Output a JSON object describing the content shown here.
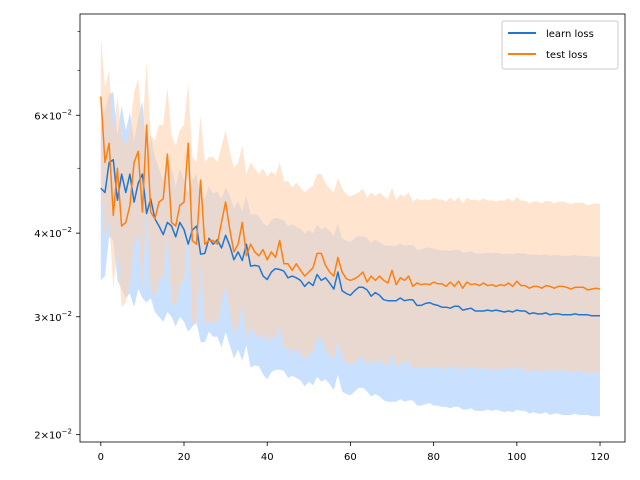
{
  "chart_data": {
    "type": "line",
    "yscale": "log",
    "xlim": [
      -5,
      126
    ],
    "ylim": [
      0.0195,
      0.085
    ],
    "x_ticks": [
      0,
      20,
      40,
      60,
      80,
      100,
      120
    ],
    "x_tick_labels": [
      "0",
      "20",
      "40",
      "60",
      "80",
      "100",
      "120"
    ],
    "y_major_ticks": [
      0.02,
      0.03,
      0.04,
      0.06
    ],
    "y_tick_labels": [
      {
        "coef": "2",
        "exp": "−2"
      },
      {
        "coef": "3",
        "exp": "−2"
      },
      {
        "coef": "4",
        "exp": "−2"
      },
      {
        "coef": "6",
        "exp": "−2"
      }
    ],
    "y_minor_ticks": [
      0.05,
      0.07,
      0.08
    ],
    "grid": false,
    "legend": {
      "placement": "top-right"
    },
    "series": [
      {
        "name": "learn loss",
        "color": "#1f77d4",
        "band_color": "#bfdcff",
        "x": [
          0,
          1,
          2,
          3,
          4,
          5,
          6,
          7,
          8,
          9,
          10,
          11,
          12,
          13,
          14,
          15,
          16,
          17,
          18,
          19,
          20,
          21,
          22,
          23,
          24,
          25,
          26,
          27,
          28,
          29,
          30,
          31,
          32,
          33,
          34,
          35,
          36,
          37,
          38,
          39,
          40,
          41,
          42,
          43,
          44,
          45,
          46,
          47,
          48,
          49,
          50,
          51,
          52,
          53,
          54,
          55,
          56,
          57,
          58,
          59,
          60,
          61,
          62,
          63,
          64,
          65,
          66,
          67,
          68,
          69,
          70,
          71,
          72,
          73,
          74,
          75,
          76,
          77,
          78,
          79,
          80,
          81,
          82,
          83,
          84,
          85,
          86,
          87,
          88,
          89,
          90,
          91,
          92,
          93,
          94,
          95,
          96,
          97,
          98,
          99,
          100,
          101,
          102,
          103,
          104,
          105,
          106,
          107,
          108,
          109,
          110,
          111,
          112,
          113,
          114,
          115,
          116,
          117,
          118,
          119,
          120
        ],
        "values": [
          0.0467,
          0.046,
          0.051,
          0.0515,
          0.0448,
          0.049,
          0.046,
          0.049,
          0.0445,
          0.0475,
          0.049,
          0.0428,
          0.045,
          0.042,
          0.041,
          0.0398,
          0.0415,
          0.041,
          0.0395,
          0.0415,
          0.0405,
          0.0385,
          0.0404,
          0.041,
          0.0372,
          0.0373,
          0.0393,
          0.0385,
          0.0391,
          0.038,
          0.0397,
          0.0383,
          0.0365,
          0.0375,
          0.0364,
          0.0385,
          0.0357,
          0.0358,
          0.0357,
          0.0345,
          0.0341,
          0.035,
          0.0354,
          0.0353,
          0.0351,
          0.0343,
          0.0345,
          0.0343,
          0.034,
          0.0333,
          0.0338,
          0.0334,
          0.0347,
          0.034,
          0.0343,
          0.0337,
          0.033,
          0.035,
          0.0328,
          0.0325,
          0.0323,
          0.0328,
          0.0332,
          0.0332,
          0.0329,
          0.0322,
          0.0326,
          0.0323,
          0.0318,
          0.0317,
          0.0317,
          0.0317,
          0.032,
          0.0317,
          0.0318,
          0.0318,
          0.0312,
          0.0312,
          0.0314,
          0.0315,
          0.0313,
          0.0312,
          0.031,
          0.031,
          0.0309,
          0.0311,
          0.0311,
          0.0307,
          0.0308,
          0.0309,
          0.0306,
          0.0306,
          0.0306,
          0.0307,
          0.0306,
          0.0307,
          0.0306,
          0.0305,
          0.0306,
          0.0305,
          0.0307,
          0.0306,
          0.0306,
          0.0303,
          0.0304,
          0.0303,
          0.0303,
          0.0304,
          0.0302,
          0.0303,
          0.0303,
          0.0302,
          0.0302,
          0.0302,
          0.0303,
          0.0302,
          0.0302,
          0.0302,
          0.0301,
          0.0301,
          0.0301
        ],
        "band_upper": [
          0.058,
          0.061,
          0.0645,
          0.065,
          0.056,
          0.062,
          0.057,
          0.0605,
          0.055,
          0.0595,
          0.063,
          0.052,
          0.056,
          0.052,
          0.05,
          0.048,
          0.051,
          0.05,
          0.047,
          0.05,
          0.048,
          0.046,
          0.048,
          0.049,
          0.0455,
          0.045,
          0.047,
          0.0458,
          0.0462,
          0.045,
          0.0468,
          0.0455,
          0.0436,
          0.0446,
          0.0432,
          0.0455,
          0.0426,
          0.0427,
          0.0424,
          0.0414,
          0.041,
          0.0418,
          0.0422,
          0.042,
          0.0418,
          0.041,
          0.0412,
          0.0409,
          0.0406,
          0.04,
          0.0404,
          0.04,
          0.0412,
          0.0405,
          0.0408,
          0.0403,
          0.0396,
          0.0413,
          0.0393,
          0.039,
          0.0388,
          0.0393,
          0.0396,
          0.0396,
          0.0393,
          0.0387,
          0.0391,
          0.0388,
          0.0384,
          0.0383,
          0.0383,
          0.0383,
          0.0386,
          0.0383,
          0.0384,
          0.0384,
          0.0378,
          0.0378,
          0.038,
          0.0381,
          0.0379,
          0.0378,
          0.0377,
          0.0377,
          0.0376,
          0.0378,
          0.0378,
          0.0374,
          0.0375,
          0.0376,
          0.0373,
          0.0373,
          0.0373,
          0.0374,
          0.0373,
          0.0374,
          0.0373,
          0.0372,
          0.0373,
          0.0372,
          0.0374,
          0.0373,
          0.0373,
          0.0371,
          0.0372,
          0.0371,
          0.0371,
          0.0372,
          0.037,
          0.0371,
          0.0371,
          0.037,
          0.037,
          0.037,
          0.0371,
          0.037,
          0.037,
          0.037,
          0.0369,
          0.0369,
          0.0369
        ],
        "band_lower": [
          0.034,
          0.0345,
          0.0395,
          0.039,
          0.034,
          0.033,
          0.032,
          0.0325,
          0.031,
          0.033,
          0.032,
          0.0315,
          0.032,
          0.0305,
          0.03,
          0.0295,
          0.0305,
          0.03,
          0.029,
          0.03,
          0.0295,
          0.0285,
          0.029,
          0.0295,
          0.0275,
          0.0275,
          0.0285,
          0.028,
          0.028,
          0.027,
          0.0285,
          0.0272,
          0.026,
          0.0268,
          0.0258,
          0.0272,
          0.0252,
          0.0254,
          0.0253,
          0.0246,
          0.0242,
          0.0248,
          0.025,
          0.025,
          0.0249,
          0.0243,
          0.0245,
          0.0243,
          0.0241,
          0.0236,
          0.024,
          0.0237,
          0.0244,
          0.024,
          0.0242,
          0.0238,
          0.0233,
          0.0246,
          0.0232,
          0.023,
          0.0229,
          0.0232,
          0.0235,
          0.0235,
          0.0232,
          0.0228,
          0.023,
          0.0228,
          0.0225,
          0.0224,
          0.0224,
          0.0224,
          0.0226,
          0.0224,
          0.0225,
          0.0225,
          0.0221,
          0.0221,
          0.0222,
          0.0223,
          0.0221,
          0.0221,
          0.022,
          0.022,
          0.0219,
          0.022,
          0.022,
          0.0218,
          0.0218,
          0.0219,
          0.0217,
          0.0217,
          0.0217,
          0.0218,
          0.0217,
          0.0218,
          0.0217,
          0.0216,
          0.0217,
          0.0216,
          0.0218,
          0.0217,
          0.0217,
          0.0215,
          0.0216,
          0.0215,
          0.0215,
          0.0216,
          0.0214,
          0.0215,
          0.0215,
          0.0214,
          0.0214,
          0.0214,
          0.0215,
          0.0214,
          0.0214,
          0.0214,
          0.0213,
          0.0213,
          0.0213
        ]
      },
      {
        "name": "test loss",
        "color": "#ff7f0e",
        "band_color": "#ffd2b0",
        "x": [
          0,
          1,
          2,
          3,
          4,
          5,
          6,
          7,
          8,
          9,
          10,
          11,
          12,
          13,
          14,
          15,
          16,
          17,
          18,
          19,
          20,
          21,
          22,
          23,
          24,
          25,
          26,
          27,
          28,
          29,
          30,
          31,
          32,
          33,
          34,
          35,
          36,
          37,
          38,
          39,
          40,
          41,
          42,
          43,
          44,
          45,
          46,
          47,
          48,
          49,
          50,
          51,
          52,
          53,
          54,
          55,
          56,
          57,
          58,
          59,
          60,
          61,
          62,
          63,
          64,
          65,
          66,
          67,
          68,
          69,
          70,
          71,
          72,
          73,
          74,
          75,
          76,
          77,
          78,
          79,
          80,
          81,
          82,
          83,
          84,
          85,
          86,
          87,
          88,
          89,
          90,
          91,
          92,
          93,
          94,
          95,
          96,
          97,
          98,
          99,
          100,
          101,
          102,
          103,
          104,
          105,
          106,
          107,
          108,
          109,
          110,
          111,
          112,
          113,
          114,
          115,
          116,
          117,
          118,
          119,
          120
        ],
        "values": [
          0.064,
          0.051,
          0.0545,
          0.0425,
          0.05,
          0.041,
          0.0415,
          0.044,
          0.051,
          0.053,
          0.043,
          0.058,
          0.043,
          0.042,
          0.0445,
          0.045,
          0.0525,
          0.0415,
          0.041,
          0.044,
          0.0445,
          0.0545,
          0.039,
          0.0385,
          0.048,
          0.0385,
          0.039,
          0.039,
          0.0385,
          0.0415,
          0.0445,
          0.0405,
          0.0375,
          0.0385,
          0.0415,
          0.037,
          0.0385,
          0.0375,
          0.037,
          0.0378,
          0.0365,
          0.0375,
          0.0368,
          0.039,
          0.036,
          0.036,
          0.0352,
          0.036,
          0.0352,
          0.0345,
          0.035,
          0.0355,
          0.0373,
          0.0373,
          0.0358,
          0.035,
          0.0345,
          0.0368,
          0.035,
          0.0342,
          0.034,
          0.0342,
          0.0345,
          0.035,
          0.0338,
          0.0345,
          0.034,
          0.0345,
          0.034,
          0.0337,
          0.0352,
          0.0335,
          0.0343,
          0.034,
          0.0345,
          0.0333,
          0.0337,
          0.0335,
          0.0336,
          0.0335,
          0.0338,
          0.0336,
          0.0336,
          0.0333,
          0.0338,
          0.0333,
          0.0339,
          0.0331,
          0.0338,
          0.0335,
          0.0336,
          0.0334,
          0.0337,
          0.0334,
          0.0335,
          0.0333,
          0.0335,
          0.0334,
          0.0337,
          0.0333,
          0.0339,
          0.0334,
          0.0334,
          0.0331,
          0.0333,
          0.0333,
          0.0331,
          0.0334,
          0.0333,
          0.0331,
          0.0333,
          0.0333,
          0.0332,
          0.033,
          0.0332,
          0.0332,
          0.0332,
          0.0329,
          0.033,
          0.0331,
          0.033
        ],
        "band_upper": [
          0.079,
          0.066,
          0.07,
          0.056,
          0.064,
          0.056,
          0.054,
          0.057,
          0.065,
          0.068,
          0.057,
          0.072,
          0.056,
          0.055,
          0.058,
          0.058,
          0.066,
          0.056,
          0.054,
          0.057,
          0.058,
          0.067,
          0.052,
          0.051,
          0.06,
          0.051,
          0.052,
          0.052,
          0.051,
          0.054,
          0.057,
          0.053,
          0.05,
          0.051,
          0.054,
          0.049,
          0.051,
          0.05,
          0.049,
          0.05,
          0.0485,
          0.0495,
          0.0488,
          0.051,
          0.0478,
          0.0478,
          0.0468,
          0.0476,
          0.0468,
          0.046,
          0.0466,
          0.0471,
          0.049,
          0.049,
          0.0475,
          0.0466,
          0.046,
          0.0484,
          0.0466,
          0.0457,
          0.0454,
          0.0457,
          0.046,
          0.0466,
          0.0452,
          0.046,
          0.0454,
          0.046,
          0.0454,
          0.045,
          0.0468,
          0.0448,
          0.0457,
          0.0454,
          0.046,
          0.0446,
          0.045,
          0.0448,
          0.0449,
          0.0448,
          0.0452,
          0.0449,
          0.0449,
          0.0446,
          0.0452,
          0.0446,
          0.0453,
          0.0443,
          0.0452,
          0.0448,
          0.0449,
          0.0447,
          0.0451,
          0.0447,
          0.0448,
          0.0446,
          0.0448,
          0.0447,
          0.0451,
          0.0446,
          0.0453,
          0.0447,
          0.0447,
          0.0443,
          0.0446,
          0.0446,
          0.0443,
          0.0447,
          0.0446,
          0.0443,
          0.0446,
          0.0446,
          0.0444,
          0.0442,
          0.0444,
          0.0444,
          0.0444,
          0.044,
          0.0442,
          0.0443,
          0.0442
        ],
        "band_lower": [
          0.048,
          0.039,
          0.042,
          0.033,
          0.038,
          0.031,
          0.0315,
          0.0335,
          0.0385,
          0.04,
          0.033,
          0.044,
          0.033,
          0.032,
          0.034,
          0.0345,
          0.04,
          0.0315,
          0.031,
          0.0335,
          0.034,
          0.041,
          0.0295,
          0.029,
          0.036,
          0.0292,
          0.0295,
          0.0295,
          0.0292,
          0.0315,
          0.0335,
          0.0305,
          0.0283,
          0.029,
          0.0313,
          0.0278,
          0.029,
          0.0283,
          0.0278,
          0.0284,
          0.0274,
          0.0282,
          0.0276,
          0.0292,
          0.027,
          0.027,
          0.0264,
          0.027,
          0.0264,
          0.0259,
          0.0263,
          0.0266,
          0.0279,
          0.0279,
          0.0268,
          0.0262,
          0.0259,
          0.0276,
          0.0262,
          0.0256,
          0.0255,
          0.0256,
          0.0259,
          0.0262,
          0.0253,
          0.0259,
          0.0255,
          0.0259,
          0.0255,
          0.0253,
          0.0264,
          0.0251,
          0.0257,
          0.0255,
          0.0259,
          0.025,
          0.0253,
          0.0251,
          0.0252,
          0.0251,
          0.0253,
          0.0252,
          0.0252,
          0.025,
          0.0253,
          0.025,
          0.0254,
          0.0248,
          0.0253,
          0.0251,
          0.0252,
          0.025,
          0.0253,
          0.025,
          0.0251,
          0.025,
          0.0251,
          0.025,
          0.0253,
          0.025,
          0.0254,
          0.025,
          0.025,
          0.0248,
          0.025,
          0.025,
          0.0248,
          0.025,
          0.025,
          0.0248,
          0.025,
          0.025,
          0.0249,
          0.0247,
          0.0249,
          0.0249,
          0.0249,
          0.0247,
          0.0247,
          0.0248,
          0.0247
        ]
      }
    ]
  }
}
